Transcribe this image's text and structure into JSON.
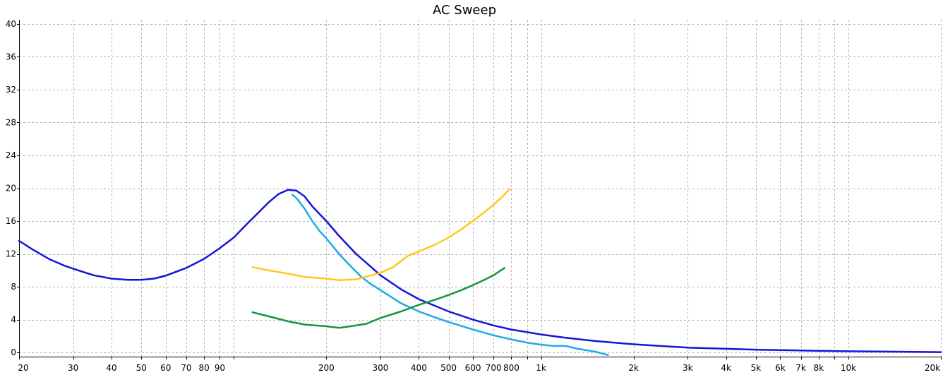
{
  "chart_data": {
    "type": "line",
    "title": "AC Sweep",
    "x_scale": "log",
    "xlim": [
      20,
      20000
    ],
    "ylim": [
      -0.5,
      40.5
    ],
    "grid": true,
    "x_ticks": [
      {
        "value": 20,
        "label": "20"
      },
      {
        "value": 30,
        "label": "30"
      },
      {
        "value": 40,
        "label": "40"
      },
      {
        "value": 50,
        "label": "50"
      },
      {
        "value": 60,
        "label": "60"
      },
      {
        "value": 70,
        "label": "70"
      },
      {
        "value": 80,
        "label": "80"
      },
      {
        "value": 90,
        "label": "90"
      },
      {
        "value": 200,
        "label": "200"
      },
      {
        "value": 300,
        "label": "300"
      },
      {
        "value": 400,
        "label": "400"
      },
      {
        "value": 500,
        "label": "500"
      },
      {
        "value": 600,
        "label": "600"
      },
      {
        "value": 700,
        "label": "700"
      },
      {
        "value": 800,
        "label": "800"
      },
      {
        "value": 1000,
        "label": "1k"
      },
      {
        "value": 2000,
        "label": "2k"
      },
      {
        "value": 3000,
        "label": "3k"
      },
      {
        "value": 4000,
        "label": "4k"
      },
      {
        "value": 5000,
        "label": "5k"
      },
      {
        "value": 6000,
        "label": "6k"
      },
      {
        "value": 7000,
        "label": "7k"
      },
      {
        "value": 8000,
        "label": "8k"
      },
      {
        "value": 10000,
        "label": "10k"
      },
      {
        "value": 20000,
        "label": "20k"
      }
    ],
    "x_grid": [
      20,
      30,
      40,
      50,
      60,
      70,
      80,
      90,
      100,
      200,
      300,
      400,
      500,
      600,
      700,
      800,
      900,
      1000,
      2000,
      3000,
      4000,
      5000,
      6000,
      7000,
      8000,
      9000,
      10000,
      20000
    ],
    "y_ticks": [
      {
        "value": 0,
        "label": "0"
      },
      {
        "value": 4,
        "label": "4"
      },
      {
        "value": 8,
        "label": "8"
      },
      {
        "value": 12,
        "label": "12"
      },
      {
        "value": 16,
        "label": "16"
      },
      {
        "value": 20,
        "label": "20"
      },
      {
        "value": 24,
        "label": "24"
      },
      {
        "value": 28,
        "label": "28"
      },
      {
        "value": 32,
        "label": "32"
      },
      {
        "value": 36,
        "label": "36"
      },
      {
        "value": 40,
        "label": "40"
      }
    ],
    "series": [
      {
        "color": "#1414dc",
        "points": [
          [
            20,
            13.6
          ],
          [
            22,
            12.6
          ],
          [
            25,
            11.4
          ],
          [
            28,
            10.6
          ],
          [
            30,
            10.2
          ],
          [
            35,
            9.4
          ],
          [
            40,
            9.0
          ],
          [
            45,
            8.85
          ],
          [
            50,
            8.85
          ],
          [
            55,
            9.0
          ],
          [
            60,
            9.35
          ],
          [
            70,
            10.3
          ],
          [
            80,
            11.4
          ],
          [
            90,
            12.7
          ],
          [
            100,
            14.0
          ],
          [
            110,
            15.6
          ],
          [
            120,
            17.0
          ],
          [
            130,
            18.3
          ],
          [
            140,
            19.3
          ],
          [
            150,
            19.8
          ],
          [
            160,
            19.7
          ],
          [
            170,
            19.0
          ],
          [
            180,
            17.8
          ],
          [
            200,
            16.0
          ],
          [
            220,
            14.2
          ],
          [
            250,
            12.0
          ],
          [
            280,
            10.4
          ],
          [
            300,
            9.4
          ],
          [
            350,
            7.7
          ],
          [
            400,
            6.5
          ],
          [
            500,
            5.0
          ],
          [
            600,
            4.0
          ],
          [
            700,
            3.3
          ],
          [
            800,
            2.8
          ],
          [
            1000,
            2.2
          ],
          [
            1200,
            1.8
          ],
          [
            1500,
            1.4
          ],
          [
            2000,
            1.0
          ],
          [
            3000,
            0.6
          ],
          [
            4000,
            0.45
          ],
          [
            5000,
            0.35
          ],
          [
            7000,
            0.25
          ],
          [
            10000,
            0.15
          ],
          [
            20000,
            0.05
          ]
        ]
      },
      {
        "color": "#1eaae6",
        "points": [
          [
            155,
            19.2
          ],
          [
            160,
            18.8
          ],
          [
            170,
            17.5
          ],
          [
            180,
            16.0
          ],
          [
            190,
            14.8
          ],
          [
            200,
            13.9
          ],
          [
            220,
            12.0
          ],
          [
            240,
            10.5
          ],
          [
            260,
            9.2
          ],
          [
            280,
            8.3
          ],
          [
            300,
            7.6
          ],
          [
            350,
            6.0
          ],
          [
            400,
            5.0
          ],
          [
            450,
            4.3
          ],
          [
            500,
            3.7
          ],
          [
            600,
            2.8
          ],
          [
            700,
            2.1
          ],
          [
            800,
            1.6
          ],
          [
            900,
            1.2
          ],
          [
            1000,
            0.95
          ],
          [
            1100,
            0.8
          ],
          [
            1200,
            0.8
          ],
          [
            1300,
            0.5
          ],
          [
            1500,
            0.1
          ],
          [
            1650,
            -0.3
          ]
        ]
      },
      {
        "color": "#ffc81e",
        "points": [
          [
            115,
            10.4
          ],
          [
            130,
            10.0
          ],
          [
            150,
            9.6
          ],
          [
            170,
            9.2
          ],
          [
            200,
            9.0
          ],
          [
            220,
            8.8
          ],
          [
            250,
            8.9
          ],
          [
            280,
            9.4
          ],
          [
            300,
            9.7
          ],
          [
            330,
            10.4
          ],
          [
            370,
            11.8
          ],
          [
            400,
            12.3
          ],
          [
            450,
            13.1
          ],
          [
            500,
            14.0
          ],
          [
            550,
            15.0
          ],
          [
            600,
            16.0
          ],
          [
            650,
            17.0
          ],
          [
            700,
            18.0
          ],
          [
            750,
            19.0
          ],
          [
            790,
            19.9
          ]
        ]
      },
      {
        "color": "#14963c",
        "points": [
          [
            115,
            4.9
          ],
          [
            130,
            4.4
          ],
          [
            150,
            3.8
          ],
          [
            170,
            3.4
          ],
          [
            200,
            3.2
          ],
          [
            220,
            3.0
          ],
          [
            240,
            3.2
          ],
          [
            270,
            3.5
          ],
          [
            300,
            4.2
          ],
          [
            350,
            5.0
          ],
          [
            400,
            5.8
          ],
          [
            450,
            6.4
          ],
          [
            500,
            7.0
          ],
          [
            550,
            7.6
          ],
          [
            600,
            8.2
          ],
          [
            650,
            8.8
          ],
          [
            700,
            9.4
          ],
          [
            760,
            10.3
          ]
        ]
      }
    ]
  }
}
